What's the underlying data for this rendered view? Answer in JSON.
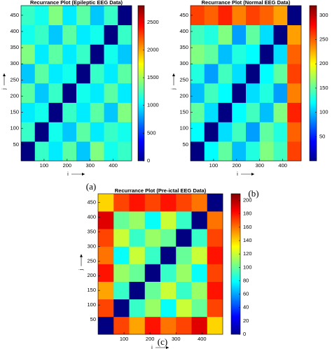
{
  "chart_data": [
    {
      "type": "heatmap",
      "title": "Recurrance Plot (Epileptic EEG Data)",
      "xlabel": "i",
      "ylabel": "j",
      "caption": "(a)",
      "colormap": "jet",
      "xlim": [
        0,
        480
      ],
      "ylim": [
        0,
        480
      ],
      "xticks": [
        100,
        200,
        300,
        400
      ],
      "yticks": [
        50,
        100,
        150,
        200,
        250,
        300,
        350,
        400,
        450
      ],
      "clim": [
        0,
        2800
      ],
      "cticks": [
        0,
        500,
        1000,
        1500,
        2000,
        2500
      ],
      "values": [
        [
          0,
          1200,
          1000,
          1300,
          900,
          1400,
          1100,
          1200
        ],
        [
          1200,
          0,
          1100,
          900,
          1300,
          1000,
          1200,
          1100
        ],
        [
          1000,
          1100,
          0,
          1200,
          1000,
          1300,
          900,
          1400
        ],
        [
          1300,
          900,
          1200,
          0,
          1100,
          1000,
          1300,
          1000
        ],
        [
          900,
          1300,
          1000,
          1100,
          0,
          1200,
          1000,
          1300
        ],
        [
          1400,
          1000,
          1300,
          1000,
          1200,
          0,
          1100,
          900
        ],
        [
          1100,
          1200,
          900,
          1300,
          1000,
          1100,
          0,
          1200
        ],
        [
          1200,
          1100,
          1400,
          1000,
          1300,
          900,
          1200,
          0
        ]
      ]
    },
    {
      "type": "heatmap",
      "title": "Recurrance Plot (Normal EEG Data)",
      "xlabel": "i",
      "ylabel": "j",
      "caption": "(b)",
      "colormap": "jet",
      "xlim": [
        0,
        480
      ],
      "ylim": [
        0,
        480
      ],
      "xticks": [
        100,
        200,
        300,
        400
      ],
      "yticks": [
        50,
        100,
        150,
        200,
        250,
        300,
        350,
        400,
        450
      ],
      "clim": [
        0,
        320
      ],
      "cticks": [
        50,
        100,
        150,
        200,
        250,
        300
      ],
      "values": [
        [
          0,
          120,
          150,
          100,
          130,
          160,
          140,
          260
        ],
        [
          120,
          0,
          110,
          140,
          90,
          150,
          130,
          250
        ],
        [
          150,
          110,
          0,
          120,
          140,
          100,
          160,
          270
        ],
        [
          100,
          140,
          120,
          0,
          110,
          130,
          90,
          240
        ],
        [
          130,
          90,
          140,
          110,
          0,
          120,
          150,
          260
        ],
        [
          160,
          150,
          100,
          130,
          120,
          0,
          110,
          250
        ],
        [
          140,
          130,
          160,
          90,
          150,
          110,
          0,
          230
        ],
        [
          260,
          250,
          270,
          240,
          260,
          250,
          230,
          0
        ]
      ]
    },
    {
      "type": "heatmap",
      "title": "Recurrance Plot (Pre-ictal EEG Data)",
      "xlabel": "i",
      "ylabel": "j",
      "caption": "(c)",
      "colormap": "jet",
      "xlim": [
        0,
        480
      ],
      "ylim": [
        0,
        480
      ],
      "xticks": [
        100,
        200,
        300,
        400
      ],
      "yticks": [
        50,
        100,
        150,
        200,
        250,
        300,
        350,
        400,
        450
      ],
      "clim": [
        0,
        210
      ],
      "cticks": [
        0,
        20,
        40,
        60,
        80,
        100,
        120,
        140,
        160,
        180,
        200
      ],
      "values": [
        [
          0,
          170,
          150,
          180,
          160,
          170,
          190,
          140
        ],
        [
          170,
          0,
          90,
          110,
          80,
          120,
          100,
          170
        ],
        [
          150,
          90,
          0,
          100,
          120,
          90,
          110,
          180
        ],
        [
          180,
          110,
          100,
          0,
          90,
          110,
          80,
          170
        ],
        [
          160,
          80,
          120,
          90,
          0,
          100,
          120,
          180
        ],
        [
          170,
          120,
          90,
          110,
          100,
          0,
          90,
          170
        ],
        [
          190,
          100,
          110,
          80,
          120,
          90,
          0,
          160
        ],
        [
          140,
          170,
          180,
          170,
          180,
          170,
          160,
          0
        ]
      ]
    }
  ]
}
